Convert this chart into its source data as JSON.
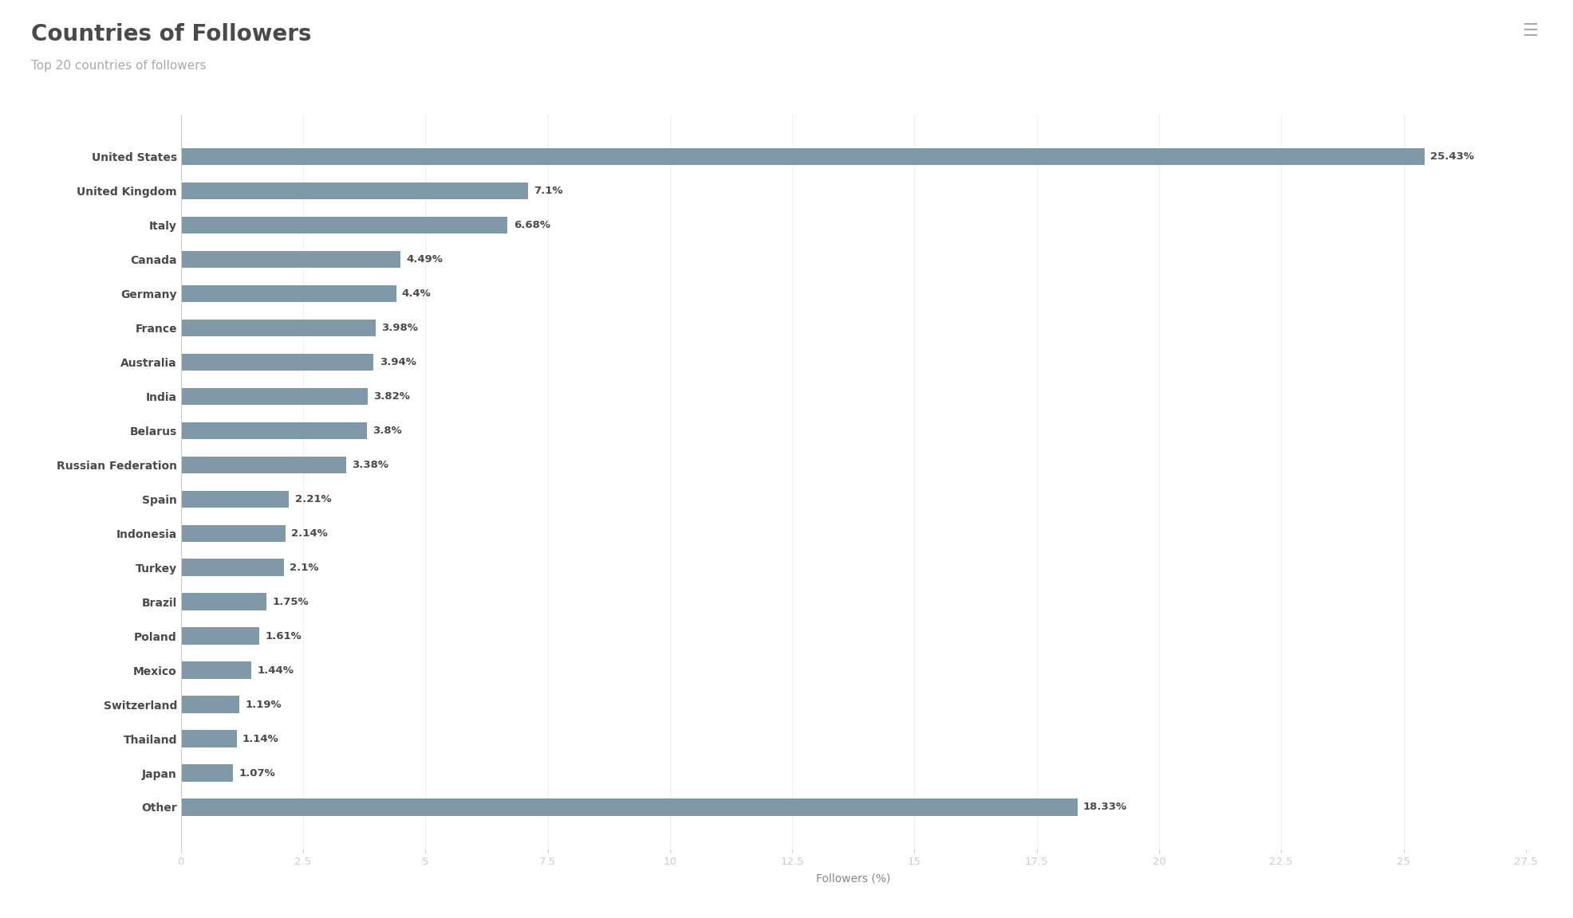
{
  "title": "Countries of Followers",
  "subtitle": "Top 20 countries of followers",
  "categories": [
    "United States",
    "United Kingdom",
    "Italy",
    "Canada",
    "Germany",
    "France",
    "Australia",
    "India",
    "Belarus",
    "Russian Federation",
    "Spain",
    "Indonesia",
    "Turkey",
    "Brazil",
    "Poland",
    "Mexico",
    "Switzerland",
    "Thailand",
    "Japan",
    "Other"
  ],
  "values": [
    25.43,
    7.1,
    6.68,
    4.49,
    4.4,
    3.98,
    3.94,
    3.82,
    3.8,
    3.38,
    2.21,
    2.14,
    2.1,
    1.75,
    1.61,
    1.44,
    1.19,
    1.14,
    1.07,
    18.33
  ],
  "labels": [
    "25.43%",
    "7.1%",
    "6.68%",
    "4.49%",
    "4.4%",
    "3.98%",
    "3.94%",
    "3.82%",
    "3.8%",
    "3.38%",
    "2.21%",
    "2.14%",
    "2.1%",
    "1.75%",
    "1.61%",
    "1.44%",
    "1.19%",
    "1.14%",
    "1.07%",
    "18.33%"
  ],
  "bar_color": "#7f99a8",
  "background_color": "#ffffff",
  "title_color": "#4a4a4a",
  "subtitle_color": "#aaaaaa",
  "label_color": "#4a4a4a",
  "axis_label_color": "#888888",
  "tick_color": "#cccccc",
  "grid_color": "#eeeeee",
  "xlabel": "Followers (%)",
  "xlim": [
    0,
    27.5
  ],
  "xticks": [
    0,
    2.5,
    5,
    7.5,
    10,
    12.5,
    15,
    17.5,
    20,
    22.5,
    25,
    27.5
  ],
  "xtick_labels": [
    "0",
    "2.5",
    "5",
    "7.5",
    "10",
    "12.5",
    "15",
    "17.5",
    "20",
    "22.5",
    "25",
    "27.5"
  ],
  "title_fontsize": 20,
  "subtitle_fontsize": 11,
  "label_fontsize": 9.5,
  "axis_fontsize": 10,
  "tick_fontsize": 9.5,
  "category_fontsize": 10,
  "menu_icon_color": "#aaaaaa",
  "bar_height": 0.5
}
